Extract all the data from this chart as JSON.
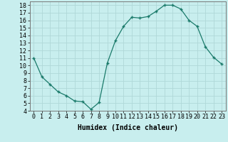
{
  "x": [
    0,
    1,
    2,
    3,
    4,
    5,
    6,
    7,
    8,
    9,
    10,
    11,
    12,
    13,
    14,
    15,
    16,
    17,
    18,
    19,
    20,
    21,
    22,
    23
  ],
  "y": [
    11,
    8.5,
    7.5,
    6.5,
    6.0,
    5.3,
    5.2,
    4.2,
    5.1,
    10.3,
    13.3,
    15.2,
    16.4,
    16.3,
    16.5,
    17.2,
    18.0,
    18.0,
    17.5,
    16.0,
    15.2,
    12.5,
    11.1,
    10.2
  ],
  "line_color": "#1a7a6a",
  "marker": "+",
  "bg_color": "#c8eeee",
  "grid_color": "#b0d8d8",
  "xlabel": "Humidex (Indice chaleur)",
  "xlim": [
    -0.5,
    23.5
  ],
  "ylim": [
    4,
    18.5
  ],
  "yticks": [
    4,
    5,
    6,
    7,
    8,
    9,
    10,
    11,
    12,
    13,
    14,
    15,
    16,
    17,
    18
  ],
  "xticks": [
    0,
    1,
    2,
    3,
    4,
    5,
    6,
    7,
    8,
    9,
    10,
    11,
    12,
    13,
    14,
    15,
    16,
    17,
    18,
    19,
    20,
    21,
    22,
    23
  ],
  "label_fontsize": 7,
  "tick_fontsize": 6
}
